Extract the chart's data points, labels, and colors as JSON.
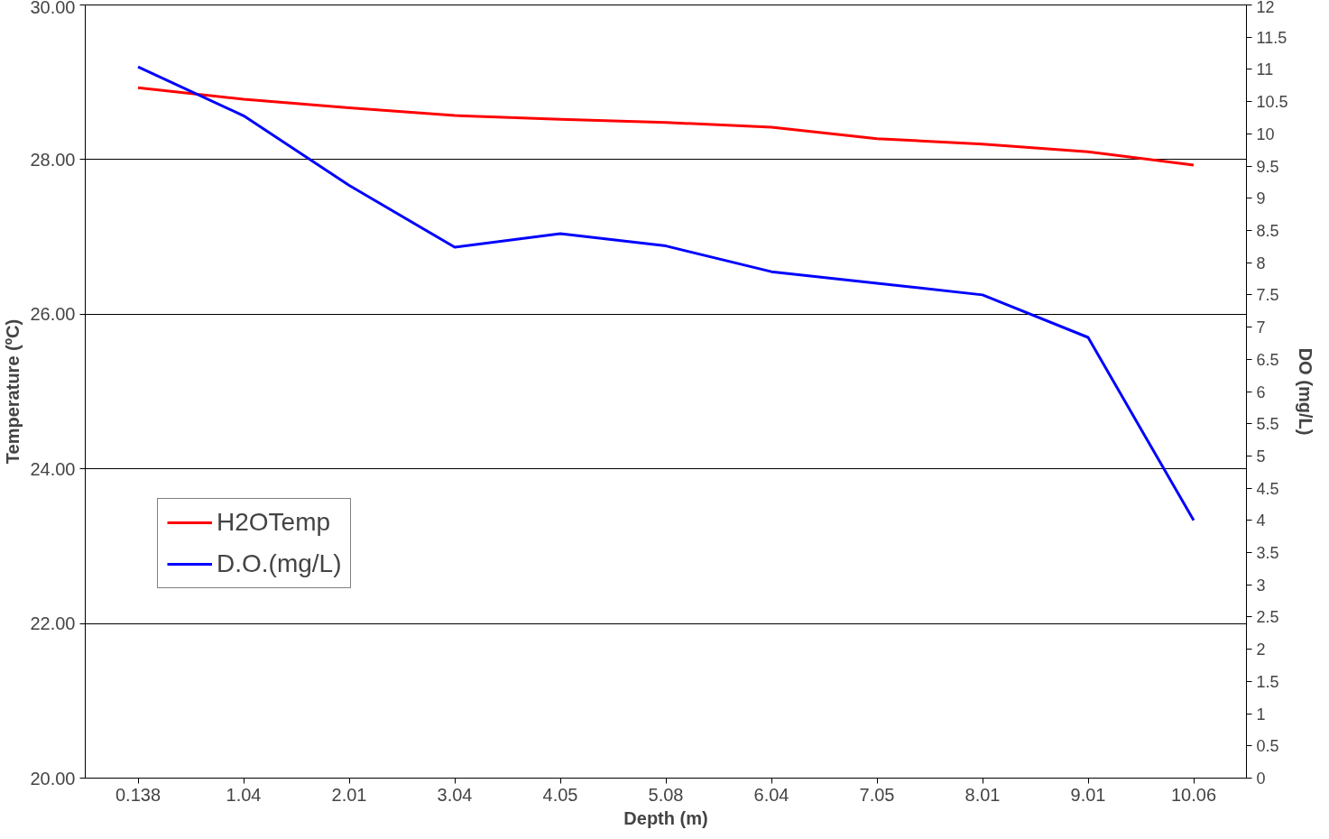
{
  "chart_data": {
    "type": "line",
    "xlabel": "Depth (m)",
    "ylabel": "Temperature (ºC)",
    "y2label": "DO (mg/L)",
    "categories": [
      "0.138",
      "1.04",
      "2.01",
      "3.04",
      "4.05",
      "5.08",
      "6.04",
      "7.05",
      "8.01",
      "9.01",
      "10.06"
    ],
    "series": [
      {
        "name": "H2OTemp",
        "color": "#ff0000",
        "values": [
          28.93,
          28.78,
          28.67,
          28.57,
          28.52,
          28.48,
          28.42,
          28.27,
          28.2,
          28.1,
          27.93
        ]
      },
      {
        "name": "D.O.(mg/L)",
        "color": "#0000ff",
        "axis": "y2",
        "values": [
          11.04,
          10.28,
          9.2,
          8.24,
          8.45,
          8.26,
          7.86,
          7.68,
          7.5,
          6.84,
          4.0
        ]
      }
    ],
    "ylim": [
      20,
      30
    ],
    "yticks": [
      {
        "value": 20,
        "label": "20.00"
      },
      {
        "value": 22,
        "label": "22.00"
      },
      {
        "value": 24,
        "label": "24.00"
      },
      {
        "value": 26,
        "label": "26.00"
      },
      {
        "value": 28,
        "label": "28.00"
      },
      {
        "value": 30,
        "label": "30.00"
      }
    ],
    "y2lim": [
      0,
      12
    ],
    "y2ticks": [
      0,
      0.5,
      1,
      1.5,
      2,
      2.5,
      3,
      3.5,
      4,
      4.5,
      5,
      5.5,
      6,
      6.5,
      7,
      7.5,
      8,
      8.5,
      9,
      9.5,
      10,
      10.5,
      11,
      11.5,
      12
    ],
    "grid": "y",
    "legend": "left",
    "marker": "none",
    "line_style": "solid"
  }
}
